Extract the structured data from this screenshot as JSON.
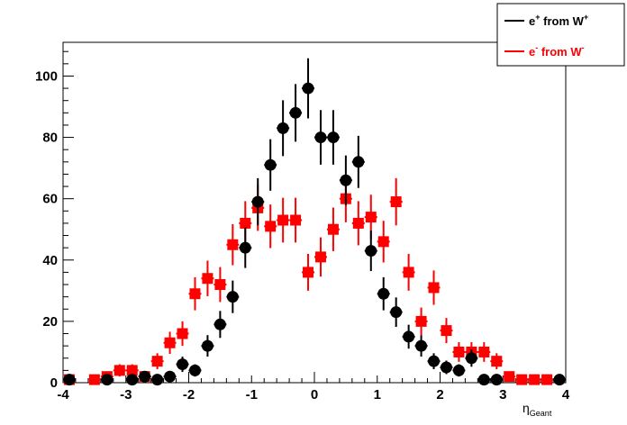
{
  "chart_data": {
    "type": "scatter",
    "title": "",
    "xlabel": {
      "main": "η",
      "sub": "Geant"
    },
    "ylabel": "",
    "xlim": [
      -4,
      4
    ],
    "ylim": [
      0,
      111
    ],
    "xticks": [
      "-4",
      "-3",
      "-2",
      "-1",
      "0",
      "1",
      "2",
      "3",
      "4"
    ],
    "yticks": [
      "0",
      "20",
      "40",
      "60",
      "80",
      "100"
    ],
    "legend_position": "top-right",
    "grid": false,
    "series": [
      {
        "legend": {
          "base": "e",
          "charge": "+",
          "from": " from W",
          "wcharge": "+"
        },
        "color": "#000000",
        "marker": "circle",
        "points": [
          {
            "x": -3.9,
            "y": 1,
            "err": 0
          },
          {
            "x": -3.3,
            "y": 1,
            "err": 0
          },
          {
            "x": -2.9,
            "y": 1,
            "err": 1
          },
          {
            "x": -2.7,
            "y": 2,
            "err": 1
          },
          {
            "x": -2.5,
            "y": 1,
            "err": 1
          },
          {
            "x": -2.3,
            "y": 2,
            "err": 1
          },
          {
            "x": -2.1,
            "y": 6,
            "err": 2.5
          },
          {
            "x": -1.9,
            "y": 4,
            "err": 2
          },
          {
            "x": -1.7,
            "y": 12,
            "err": 3.5
          },
          {
            "x": -1.5,
            "y": 19,
            "err": 4.4
          },
          {
            "x": -1.3,
            "y": 28,
            "err": 5.3
          },
          {
            "x": -1.1,
            "y": 44,
            "err": 6.6
          },
          {
            "x": -0.9,
            "y": 59,
            "err": 7.7
          },
          {
            "x": -0.7,
            "y": 71,
            "err": 8.4
          },
          {
            "x": -0.5,
            "y": 83,
            "err": 9.1
          },
          {
            "x": -0.3,
            "y": 88,
            "err": 9.4
          },
          {
            "x": -0.1,
            "y": 96,
            "err": 9.8
          },
          {
            "x": 0.1,
            "y": 80,
            "err": 8.9
          },
          {
            "x": 0.3,
            "y": 80,
            "err": 8.9
          },
          {
            "x": 0.5,
            "y": 66,
            "err": 8.1
          },
          {
            "x": 0.7,
            "y": 72,
            "err": 8.5
          },
          {
            "x": 0.9,
            "y": 43,
            "err": 6.6
          },
          {
            "x": 1.1,
            "y": 29,
            "err": 5.4
          },
          {
            "x": 1.3,
            "y": 23,
            "err": 4.8
          },
          {
            "x": 1.5,
            "y": 15,
            "err": 3.9
          },
          {
            "x": 1.7,
            "y": 12,
            "err": 3.5
          },
          {
            "x": 1.9,
            "y": 7,
            "err": 2.6
          },
          {
            "x": 2.1,
            "y": 5,
            "err": 2.2
          },
          {
            "x": 2.3,
            "y": 4,
            "err": 2
          },
          {
            "x": 2.5,
            "y": 8,
            "err": 2.8
          },
          {
            "x": 2.7,
            "y": 1,
            "err": 1
          },
          {
            "x": 2.9,
            "y": 1,
            "err": 1
          },
          {
            "x": 3.9,
            "y": 1,
            "err": 0
          }
        ]
      },
      {
        "legend": {
          "base": "e",
          "charge": "-",
          "from": " from W",
          "wcharge": "-"
        },
        "color": "#ff0000",
        "marker": "square",
        "points": [
          {
            "x": -3.9,
            "y": 1,
            "err": 1
          },
          {
            "x": -3.5,
            "y": 1,
            "err": 1
          },
          {
            "x": -3.3,
            "y": 2,
            "err": 1.4
          },
          {
            "x": -3.1,
            "y": 4,
            "err": 2
          },
          {
            "x": -2.9,
            "y": 4,
            "err": 2
          },
          {
            "x": -2.7,
            "y": 2,
            "err": 1.4
          },
          {
            "x": -2.5,
            "y": 7,
            "err": 2.6
          },
          {
            "x": -2.3,
            "y": 13,
            "err": 3.6
          },
          {
            "x": -2.1,
            "y": 16,
            "err": 4
          },
          {
            "x": -1.9,
            "y": 29,
            "err": 5.4
          },
          {
            "x": -1.7,
            "y": 34,
            "err": 5.8
          },
          {
            "x": -1.5,
            "y": 32,
            "err": 5.7
          },
          {
            "x": -1.3,
            "y": 45,
            "err": 6.7
          },
          {
            "x": -1.1,
            "y": 52,
            "err": 7.2
          },
          {
            "x": -0.9,
            "y": 57,
            "err": 7.5
          },
          {
            "x": -0.7,
            "y": 51,
            "err": 7.1
          },
          {
            "x": -0.5,
            "y": 53,
            "err": 7.3
          },
          {
            "x": -0.3,
            "y": 53,
            "err": 7.3
          },
          {
            "x": -0.1,
            "y": 36,
            "err": 6
          },
          {
            "x": 0.1,
            "y": 41,
            "err": 6.4
          },
          {
            "x": 0.3,
            "y": 50,
            "err": 7.1
          },
          {
            "x": 0.5,
            "y": 60,
            "err": 7.7
          },
          {
            "x": 0.7,
            "y": 52,
            "err": 7.2
          },
          {
            "x": 0.9,
            "y": 54,
            "err": 7.3
          },
          {
            "x": 1.1,
            "y": 46,
            "err": 6.8
          },
          {
            "x": 1.3,
            "y": 59,
            "err": 7.7
          },
          {
            "x": 1.5,
            "y": 36,
            "err": 6
          },
          {
            "x": 1.7,
            "y": 20,
            "err": 4.5
          },
          {
            "x": 1.9,
            "y": 31,
            "err": 5.6
          },
          {
            "x": 2.1,
            "y": 17,
            "err": 4.1
          },
          {
            "x": 2.3,
            "y": 10,
            "err": 3.2
          },
          {
            "x": 2.5,
            "y": 10,
            "err": 3.2
          },
          {
            "x": 2.7,
            "y": 10,
            "err": 3.2
          },
          {
            "x": 2.9,
            "y": 7,
            "err": 2.6
          },
          {
            "x": 3.1,
            "y": 2,
            "err": 1.4
          },
          {
            "x": 3.3,
            "y": 1,
            "err": 1
          },
          {
            "x": 3.5,
            "y": 1,
            "err": 1
          },
          {
            "x": 3.7,
            "y": 1,
            "err": 1
          }
        ]
      }
    ]
  }
}
